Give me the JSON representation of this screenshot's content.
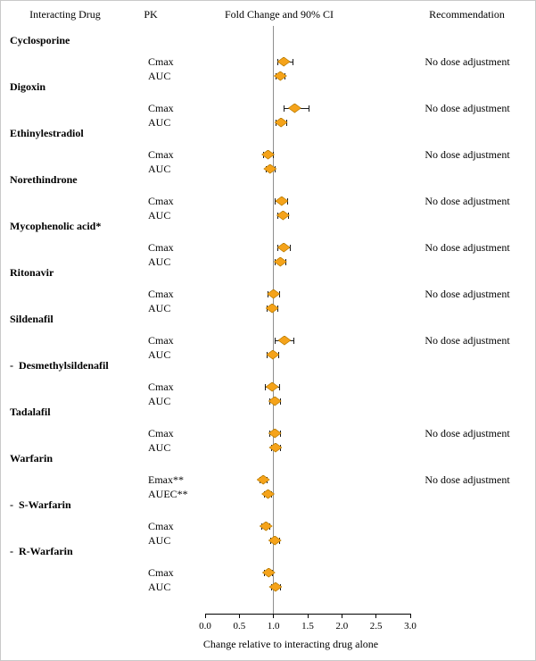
{
  "columns": {
    "drug": "Interacting Drug",
    "pk": "PK",
    "plot": "Fold Change and 90% CI",
    "recommendation": "Recommendation"
  },
  "chart_data": {
    "type": "scatter",
    "subtype": "forest-plot",
    "title": "Fold Change and 90% CI",
    "xlabel": "Change relative to interacting drug alone",
    "x_range": [
      0.0,
      3.0
    ],
    "x_ticks": [
      0.0,
      0.5,
      1.0,
      1.5,
      2.0,
      2.5,
      3.0
    ],
    "reference_line": 1.0,
    "marker_color": "#F5A31A",
    "marker_outline": "#B97B00",
    "ci_color": "#1a1a1a",
    "legend": "point = fold change, bar = 90% CI",
    "groups": [
      {
        "drug": "Cyclosporine",
        "recommendation": "No dose adjustment",
        "rows": [
          {
            "pk": "Cmax",
            "value": 1.15,
            "lo": 1.06,
            "hi": 1.28
          },
          {
            "pk": "AUC",
            "value": 1.1,
            "lo": 1.04,
            "hi": 1.17
          }
        ]
      },
      {
        "drug": "Digoxin",
        "recommendation": "No dose adjustment",
        "rows": [
          {
            "pk": "Cmax",
            "value": 1.31,
            "lo": 1.15,
            "hi": 1.52
          },
          {
            "pk": "AUC",
            "value": 1.11,
            "lo": 1.04,
            "hi": 1.19
          }
        ]
      },
      {
        "drug": "Ethinylestradiol",
        "recommendation": "No dose adjustment",
        "rows": [
          {
            "pk": "Cmax",
            "value": 0.92,
            "lo": 0.85,
            "hi": 1.0
          },
          {
            "pk": "AUC",
            "value": 0.95,
            "lo": 0.89,
            "hi": 1.02
          }
        ]
      },
      {
        "drug": "Norethindrone",
        "recommendation": "No dose adjustment",
        "rows": [
          {
            "pk": "Cmax",
            "value": 1.12,
            "lo": 1.03,
            "hi": 1.21
          },
          {
            "pk": "AUC",
            "value": 1.14,
            "lo": 1.06,
            "hi": 1.22
          }
        ]
      },
      {
        "drug": "Mycophenolic acid*",
        "recommendation": "No dose adjustment",
        "rows": [
          {
            "pk": "Cmax",
            "value": 1.15,
            "lo": 1.06,
            "hi": 1.25
          },
          {
            "pk": "AUC",
            "value": 1.1,
            "lo": 1.03,
            "hi": 1.18
          }
        ]
      },
      {
        "drug": "Ritonavir",
        "recommendation": "No dose adjustment",
        "rows": [
          {
            "pk": "Cmax",
            "value": 1.0,
            "lo": 0.92,
            "hi": 1.09
          },
          {
            "pk": "AUC",
            "value": 0.98,
            "lo": 0.91,
            "hi": 1.06
          }
        ]
      },
      {
        "drug": "Sildenafil",
        "recommendation": "No dose adjustment",
        "rows": [
          {
            "pk": "Cmax",
            "value": 1.16,
            "lo": 1.03,
            "hi": 1.3
          },
          {
            "pk": "AUC",
            "value": 0.99,
            "lo": 0.91,
            "hi": 1.07
          }
        ]
      },
      {
        "drug": "-  Desmethylsildenafil",
        "recommendation": "",
        "rows": [
          {
            "pk": "Cmax",
            "value": 0.98,
            "lo": 0.88,
            "hi": 1.09
          },
          {
            "pk": "AUC",
            "value": 1.02,
            "lo": 0.94,
            "hi": 1.1
          }
        ]
      },
      {
        "drug": "Tadalafil",
        "recommendation": "No dose adjustment",
        "rows": [
          {
            "pk": "Cmax",
            "value": 1.02,
            "lo": 0.95,
            "hi": 1.1
          },
          {
            "pk": "AUC",
            "value": 1.03,
            "lo": 0.97,
            "hi": 1.1
          }
        ]
      },
      {
        "drug": "Warfarin",
        "recommendation": "No dose adjustment",
        "rows": [
          {
            "pk": "Emax**",
            "value": 0.85,
            "lo": 0.8,
            "hi": 0.91
          },
          {
            "pk": "AUEC**",
            "value": 0.92,
            "lo": 0.87,
            "hi": 0.97
          }
        ]
      },
      {
        "drug": "-  S-Warfarin",
        "recommendation": "",
        "rows": [
          {
            "pk": "Cmax",
            "value": 0.89,
            "lo": 0.83,
            "hi": 0.95
          },
          {
            "pk": "AUC",
            "value": 1.02,
            "lo": 0.96,
            "hi": 1.09
          }
        ]
      },
      {
        "drug": "-  R-Warfarin",
        "recommendation": "",
        "rows": [
          {
            "pk": "Cmax",
            "value": 0.93,
            "lo": 0.87,
            "hi": 0.99
          },
          {
            "pk": "AUC",
            "value": 1.03,
            "lo": 0.97,
            "hi": 1.1
          }
        ]
      }
    ]
  }
}
